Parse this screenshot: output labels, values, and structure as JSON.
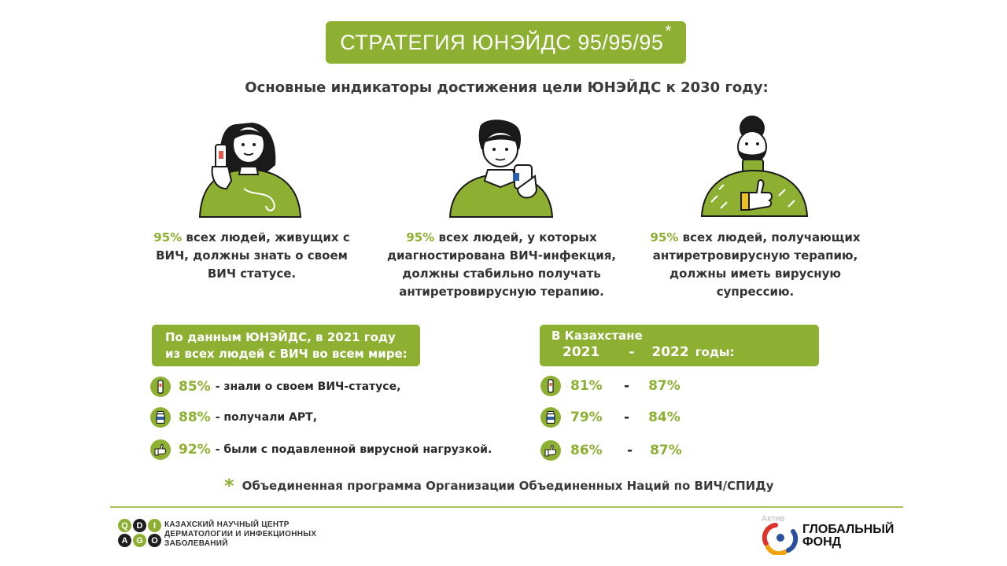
{
  "header": {
    "title": "СТРАТЕГИЯ ЮНЭЙДС 95/95/95",
    "title_star": "*",
    "subtitle": "Основные индикаторы достижения цели ЮНЭЙДС к 2030 году:"
  },
  "indicators": [
    {
      "pct": "95%",
      "text": " всех людей, живущих с ВИЧ, должны знать о своем ВИЧ статусе."
    },
    {
      "pct": "95%",
      "text": " всех людей, у которых диагностирована ВИЧ-инфекция, должны стабильно получать антиретровирусную терапию."
    },
    {
      "pct": "95%",
      "text": " всех людей, получающих антиретровирусную терапию, должны иметь вирусную супрессию."
    }
  ],
  "world": {
    "box_line1": "По данным ЮНЭЙДС, в 2021 году",
    "box_line2": "из всех людей с ВИЧ во всем мире:",
    "rows": [
      {
        "icon": "test-strip-icon",
        "pct": "85%",
        "text": "- знали о своем ВИЧ-статусе,"
      },
      {
        "icon": "pill-bottle-icon",
        "pct": "88%",
        "text": "- получали АРТ,"
      },
      {
        "icon": "thumbs-up-icon",
        "pct": "92%",
        "text": "- были с подавленной вирусной нагрузкой."
      }
    ]
  },
  "kazakhstan": {
    "box_line1": "В Казахстане",
    "year1": "2021",
    "dash": "-",
    "year2": "2022",
    "years_suffix": "годы:",
    "rows": [
      {
        "icon": "test-strip-icon",
        "v2021": "81%",
        "dash": "-",
        "v2022": "87%"
      },
      {
        "icon": "pill-bottle-icon",
        "v2021": "79%",
        "dash": "-",
        "v2022": "84%"
      },
      {
        "icon": "thumbs-up-icon",
        "v2021": "86%",
        "dash": "-",
        "v2022": "87%"
      }
    ]
  },
  "footnote": {
    "asterisk": "*",
    "text": "Объединенная программа Организации Объединенных Наций по ВИЧ/СПИДу"
  },
  "footer": {
    "qdi_letters": [
      "Q",
      "D",
      "I",
      "A",
      "G",
      "O"
    ],
    "qdi_line1": "КАЗАХСКИЙ НАУЧНЫЙ ЦЕНТР",
    "qdi_line2": "ДЕРМАТОЛОГИИ И ИНФЕКЦИОННЫХ",
    "qdi_line3": "ЗАБОЛЕВАНИЙ",
    "gf_ghost": "Актив",
    "gf_line1": "ГЛОБАЛЬНЫЙ",
    "gf_line2": "ФОНД"
  },
  "colors": {
    "accent_green": "#8db032",
    "text_dark": "#2a2a2a"
  }
}
